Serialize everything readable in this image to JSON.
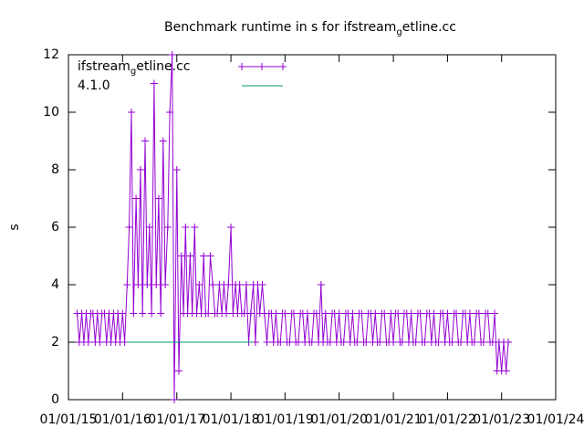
{
  "chart_data": {
    "type": "line",
    "title": "Benchmark runtime in s for ifstream_getline.cc",
    "ylabel": "s",
    "xlim": [
      "2015-01-01",
      "2024-01-01"
    ],
    "xticks": [
      {
        "value": "2015-01-01",
        "label": "01/01/15"
      },
      {
        "value": "2016-01-01",
        "label": "01/01/16"
      },
      {
        "value": "2017-01-01",
        "label": "01/01/17"
      },
      {
        "value": "2018-01-01",
        "label": "01/01/18"
      },
      {
        "value": "2019-01-01",
        "label": "01/01/19"
      },
      {
        "value": "2020-01-01",
        "label": "01/01/20"
      },
      {
        "value": "2021-01-01",
        "label": "01/01/21"
      },
      {
        "value": "2022-01-01",
        "label": "01/01/22"
      },
      {
        "value": "2023-01-01",
        "label": "01/01/23"
      },
      {
        "value": "2024-01-01",
        "label": "01/01/24"
      }
    ],
    "ylim": [
      0,
      12
    ],
    "yticks": [
      0,
      2,
      4,
      6,
      8,
      10,
      12
    ],
    "legend": "top-left",
    "series": [
      {
        "name": "ifstream_getline.cc",
        "color": "#9400d3",
        "marker": "+",
        "x": [
          "2015-03-01",
          "2015-03-15",
          "2015-04-01",
          "2015-04-15",
          "2015-05-01",
          "2015-05-15",
          "2015-06-01",
          "2015-06-15",
          "2015-07-01",
          "2015-07-15",
          "2015-08-01",
          "2015-08-15",
          "2015-09-01",
          "2015-09-15",
          "2015-10-01",
          "2015-10-15",
          "2015-11-01",
          "2015-11-15",
          "2015-12-01",
          "2015-12-15",
          "2016-01-01",
          "2016-01-15",
          "2016-02-01",
          "2016-02-15",
          "2016-03-01",
          "2016-03-15",
          "2016-04-01",
          "2016-04-15",
          "2016-05-01",
          "2016-05-15",
          "2016-06-01",
          "2016-06-15",
          "2016-07-01",
          "2016-07-15",
          "2016-08-01",
          "2016-08-15",
          "2016-09-01",
          "2016-09-15",
          "2016-10-01",
          "2016-10-15",
          "2016-11-01",
          "2016-11-15",
          "2016-12-01",
          "2016-12-15",
          "2017-01-01",
          "2017-01-15",
          "2017-02-01",
          "2017-02-15",
          "2017-03-01",
          "2017-03-15",
          "2017-04-01",
          "2017-04-15",
          "2017-05-01",
          "2017-05-15",
          "2017-06-01",
          "2017-06-15",
          "2017-07-01",
          "2017-07-15",
          "2017-08-01",
          "2017-08-15",
          "2017-09-01",
          "2017-09-15",
          "2017-10-01",
          "2017-10-15",
          "2017-11-01",
          "2017-11-15",
          "2017-12-01",
          "2017-12-15",
          "2018-01-01",
          "2018-01-15",
          "2018-02-01",
          "2018-02-15",
          "2018-03-01",
          "2018-03-15",
          "2018-04-01",
          "2018-04-15",
          "2018-05-01",
          "2018-05-15",
          "2018-06-01",
          "2018-06-15",
          "2018-07-01",
          "2018-07-15",
          "2018-08-01",
          "2018-08-15",
          "2018-09-01",
          "2018-09-15",
          "2018-10-01",
          "2018-10-15",
          "2018-11-01",
          "2018-11-15",
          "2018-12-01",
          "2018-12-15",
          "2019-01-01",
          "2019-01-15",
          "2019-02-01",
          "2019-02-15",
          "2019-03-01",
          "2019-03-15",
          "2019-04-01",
          "2019-04-15",
          "2019-05-01",
          "2019-05-15",
          "2019-06-01",
          "2019-06-15",
          "2019-07-01",
          "2019-07-15",
          "2019-08-01",
          "2019-08-15",
          "2019-09-01",
          "2019-09-15",
          "2019-10-01",
          "2019-10-15",
          "2019-11-01",
          "2019-11-15",
          "2019-12-01",
          "2019-12-15",
          "2020-01-01",
          "2020-01-15",
          "2020-02-01",
          "2020-02-15",
          "2020-03-01",
          "2020-03-15",
          "2020-04-01",
          "2020-04-15",
          "2020-05-01",
          "2020-05-15",
          "2020-06-01",
          "2020-06-15",
          "2020-07-01",
          "2020-07-15",
          "2020-08-01",
          "2020-08-15",
          "2020-09-01",
          "2020-09-15",
          "2020-10-01",
          "2020-10-15",
          "2020-11-01",
          "2020-11-15",
          "2020-12-01",
          "2020-12-15",
          "2021-01-01",
          "2021-01-15",
          "2021-02-01",
          "2021-02-15",
          "2021-03-01",
          "2021-03-15",
          "2021-04-01",
          "2021-04-15",
          "2021-05-01",
          "2021-05-15",
          "2021-06-01",
          "2021-06-15",
          "2021-07-01",
          "2021-07-15",
          "2021-08-01",
          "2021-08-15",
          "2021-09-01",
          "2021-09-15",
          "2021-10-01",
          "2021-10-15",
          "2021-11-01",
          "2021-11-15",
          "2021-12-01",
          "2021-12-15",
          "2022-01-01",
          "2022-01-15",
          "2022-02-01",
          "2022-02-15",
          "2022-03-01",
          "2022-03-15",
          "2022-04-01",
          "2022-04-15",
          "2022-05-01",
          "2022-05-15",
          "2022-06-01",
          "2022-06-15",
          "2022-07-01",
          "2022-07-15",
          "2022-08-01",
          "2022-08-15",
          "2022-09-01",
          "2022-09-15",
          "2022-10-01",
          "2022-10-15",
          "2022-11-01",
          "2022-11-15",
          "2022-12-01",
          "2022-12-15",
          "2023-01-01",
          "2023-01-15",
          "2023-02-01",
          "2023-02-15"
        ],
        "values": [
          3,
          2,
          3,
          2,
          3,
          2,
          3,
          3,
          2,
          3,
          2,
          3,
          3,
          2,
          3,
          2,
          3,
          2,
          3,
          2,
          3,
          2,
          4,
          6,
          10,
          3,
          7,
          4,
          8,
          3,
          9,
          4,
          6,
          3,
          11,
          4,
          7,
          3,
          9,
          4,
          6,
          10,
          12,
          0,
          8,
          1,
          5,
          3,
          6,
          3,
          5,
          3,
          6,
          3,
          4,
          3,
          5,
          3,
          3,
          5,
          4,
          3,
          3,
          4,
          3,
          4,
          3,
          4,
          6,
          3,
          4,
          3,
          4,
          3,
          3,
          4,
          2,
          3,
          4,
          2,
          4,
          3,
          4,
          3,
          2,
          3,
          3,
          2,
          3,
          2,
          2,
          3,
          3,
          2,
          2,
          3,
          3,
          2,
          2,
          3,
          3,
          2,
          3,
          2,
          2,
          3,
          3,
          2,
          4,
          2,
          3,
          2,
          2,
          3,
          3,
          2,
          3,
          2,
          2,
          3,
          3,
          2,
          3,
          2,
          2,
          3,
          3,
          2,
          2,
          3,
          3,
          2,
          3,
          2,
          2,
          3,
          3,
          2,
          2,
          3,
          2,
          3,
          3,
          2,
          2,
          3,
          3,
          2,
          3,
          2,
          2,
          3,
          3,
          2,
          2,
          3,
          3,
          2,
          3,
          2,
          2,
          3,
          3,
          2,
          3,
          2,
          2,
          3,
          3,
          2,
          2,
          3,
          3,
          2,
          3,
          2,
          2,
          3,
          3,
          2,
          2,
          3,
          3,
          2,
          2,
          3,
          1,
          2,
          1,
          2,
          1,
          2
        ]
      },
      {
        "name": "4.1.0",
        "color": "#009e73",
        "x": [
          "2016-02-01",
          "2018-06-01"
        ],
        "values": [
          2,
          2
        ]
      }
    ]
  }
}
